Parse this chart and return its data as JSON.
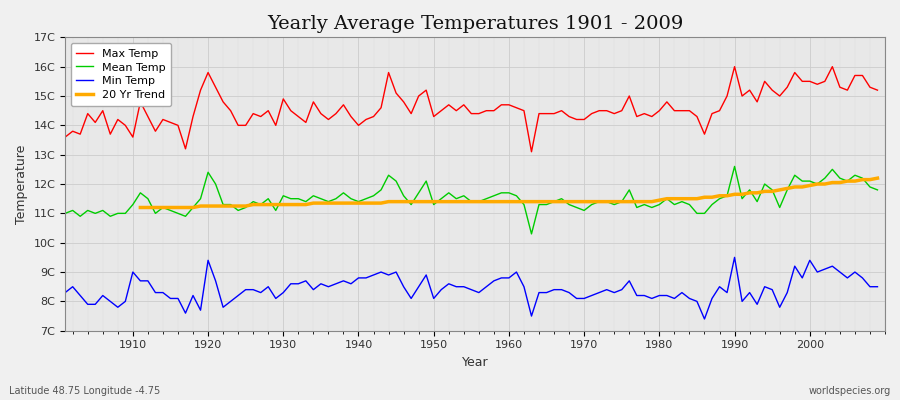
{
  "title": "Yearly Average Temperatures 1901 - 2009",
  "xlabel": "Year",
  "ylabel": "Temperature",
  "subtitle_left": "Latitude 48.75 Longitude -4.75",
  "subtitle_right": "worldspecies.org",
  "years": [
    1901,
    1902,
    1903,
    1904,
    1905,
    1906,
    1907,
    1908,
    1909,
    1910,
    1911,
    1912,
    1913,
    1914,
    1915,
    1916,
    1917,
    1918,
    1919,
    1920,
    1921,
    1922,
    1923,
    1924,
    1925,
    1926,
    1927,
    1928,
    1929,
    1930,
    1931,
    1932,
    1933,
    1934,
    1935,
    1936,
    1937,
    1938,
    1939,
    1940,
    1941,
    1942,
    1943,
    1944,
    1945,
    1946,
    1947,
    1948,
    1949,
    1950,
    1951,
    1952,
    1953,
    1954,
    1955,
    1956,
    1957,
    1958,
    1959,
    1960,
    1961,
    1962,
    1963,
    1964,
    1965,
    1966,
    1967,
    1968,
    1969,
    1970,
    1971,
    1972,
    1973,
    1974,
    1975,
    1976,
    1977,
    1978,
    1979,
    1980,
    1981,
    1982,
    1983,
    1984,
    1985,
    1986,
    1987,
    1988,
    1989,
    1990,
    1991,
    1992,
    1993,
    1994,
    1995,
    1996,
    1997,
    1998,
    1999,
    2000,
    2001,
    2002,
    2003,
    2004,
    2005,
    2006,
    2007,
    2008,
    2009
  ],
  "max_temp": [
    13.6,
    13.8,
    13.7,
    14.4,
    14.1,
    14.5,
    13.7,
    14.2,
    14.0,
    13.6,
    14.8,
    14.3,
    13.8,
    14.2,
    14.1,
    14.0,
    13.2,
    14.3,
    15.2,
    15.8,
    15.3,
    14.8,
    14.5,
    14.0,
    14.0,
    14.4,
    14.3,
    14.5,
    14.0,
    14.9,
    14.5,
    14.3,
    14.1,
    14.8,
    14.4,
    14.2,
    14.4,
    14.7,
    14.3,
    14.0,
    14.2,
    14.3,
    14.6,
    15.8,
    15.1,
    14.8,
    14.4,
    15.0,
    15.2,
    14.3,
    14.5,
    14.7,
    14.5,
    14.7,
    14.4,
    14.4,
    14.5,
    14.5,
    14.7,
    14.7,
    14.6,
    14.5,
    13.1,
    14.4,
    14.4,
    14.4,
    14.5,
    14.3,
    14.2,
    14.2,
    14.4,
    14.5,
    14.5,
    14.4,
    14.5,
    15.0,
    14.3,
    14.4,
    14.3,
    14.5,
    14.8,
    14.5,
    14.5,
    14.5,
    14.3,
    13.7,
    14.4,
    14.5,
    15.0,
    16.0,
    15.0,
    15.2,
    14.8,
    15.5,
    15.2,
    15.0,
    15.3,
    15.8,
    15.5,
    15.5,
    15.4,
    15.5,
    16.0,
    15.3,
    15.2,
    15.7,
    15.7,
    15.3,
    15.2
  ],
  "mean_temp": [
    11.0,
    11.1,
    10.9,
    11.1,
    11.0,
    11.1,
    10.9,
    11.0,
    11.0,
    11.3,
    11.7,
    11.5,
    11.0,
    11.2,
    11.1,
    11.0,
    10.9,
    11.2,
    11.5,
    12.4,
    12.0,
    11.3,
    11.3,
    11.1,
    11.2,
    11.4,
    11.3,
    11.5,
    11.1,
    11.6,
    11.5,
    11.5,
    11.4,
    11.6,
    11.5,
    11.4,
    11.5,
    11.7,
    11.5,
    11.4,
    11.5,
    11.6,
    11.8,
    12.3,
    12.1,
    11.6,
    11.3,
    11.7,
    12.1,
    11.3,
    11.5,
    11.7,
    11.5,
    11.6,
    11.4,
    11.4,
    11.5,
    11.6,
    11.7,
    11.7,
    11.6,
    11.3,
    10.3,
    11.3,
    11.3,
    11.4,
    11.5,
    11.3,
    11.2,
    11.1,
    11.3,
    11.4,
    11.4,
    11.3,
    11.4,
    11.8,
    11.2,
    11.3,
    11.2,
    11.3,
    11.5,
    11.3,
    11.4,
    11.3,
    11.0,
    11.0,
    11.3,
    11.5,
    11.6,
    12.6,
    11.5,
    11.8,
    11.4,
    12.0,
    11.8,
    11.2,
    11.8,
    12.3,
    12.1,
    12.1,
    12.0,
    12.2,
    12.5,
    12.2,
    12.1,
    12.3,
    12.2,
    11.9,
    11.8
  ],
  "min_temp": [
    8.3,
    8.5,
    8.2,
    7.9,
    7.9,
    8.2,
    8.0,
    7.8,
    8.0,
    9.0,
    8.7,
    8.7,
    8.3,
    8.3,
    8.1,
    8.1,
    7.6,
    8.2,
    7.7,
    9.4,
    8.7,
    7.8,
    8.0,
    8.2,
    8.4,
    8.4,
    8.3,
    8.5,
    8.1,
    8.3,
    8.6,
    8.6,
    8.7,
    8.4,
    8.6,
    8.5,
    8.6,
    8.7,
    8.6,
    8.8,
    8.8,
    8.9,
    9.0,
    8.9,
    9.0,
    8.5,
    8.1,
    8.5,
    8.9,
    8.1,
    8.4,
    8.6,
    8.5,
    8.5,
    8.4,
    8.3,
    8.5,
    8.7,
    8.8,
    8.8,
    9.0,
    8.5,
    7.5,
    8.3,
    8.3,
    8.4,
    8.4,
    8.3,
    8.1,
    8.1,
    8.2,
    8.3,
    8.4,
    8.3,
    8.4,
    8.7,
    8.2,
    8.2,
    8.1,
    8.2,
    8.2,
    8.1,
    8.3,
    8.1,
    8.0,
    7.4,
    8.1,
    8.5,
    8.3,
    9.5,
    8.0,
    8.3,
    7.9,
    8.5,
    8.4,
    7.8,
    8.3,
    9.2,
    8.8,
    9.4,
    9.0,
    9.1,
    9.2,
    9.0,
    8.8,
    9.0,
    8.8,
    8.5,
    8.5
  ],
  "trend_years": [
    1911,
    1912,
    1913,
    1914,
    1915,
    1916,
    1917,
    1918,
    1919,
    1920,
    1921,
    1922,
    1923,
    1924,
    1925,
    1926,
    1927,
    1928,
    1929,
    1930,
    1931,
    1932,
    1933,
    1934,
    1935,
    1936,
    1937,
    1938,
    1939,
    1940,
    1941,
    1942,
    1943,
    1944,
    1945,
    1946,
    1947,
    1948,
    1949,
    1950,
    1951,
    1952,
    1953,
    1954,
    1955,
    1956,
    1957,
    1958,
    1959,
    1960,
    1961,
    1962,
    1963,
    1964,
    1965,
    1966,
    1967,
    1968,
    1969,
    1970,
    1971,
    1972,
    1973,
    1974,
    1975,
    1976,
    1977,
    1978,
    1979,
    1980,
    1981,
    1982,
    1983,
    1984,
    1985,
    1986,
    1987,
    1988,
    1989,
    1990,
    1991,
    1992,
    1993,
    1994,
    1995,
    1996,
    1997,
    1998,
    1999,
    2000,
    2001,
    2002,
    2003,
    2004,
    2005,
    2006,
    2007,
    2008,
    2009
  ],
  "trend_vals": [
    11.2,
    11.2,
    11.2,
    11.2,
    11.2,
    11.2,
    11.2,
    11.2,
    11.25,
    11.25,
    11.25,
    11.25,
    11.25,
    11.25,
    11.25,
    11.3,
    11.3,
    11.3,
    11.3,
    11.3,
    11.3,
    11.3,
    11.3,
    11.35,
    11.35,
    11.35,
    11.35,
    11.35,
    11.35,
    11.35,
    11.35,
    11.35,
    11.35,
    11.4,
    11.4,
    11.4,
    11.4,
    11.4,
    11.4,
    11.4,
    11.4,
    11.4,
    11.4,
    11.4,
    11.4,
    11.4,
    11.4,
    11.4,
    11.4,
    11.4,
    11.4,
    11.4,
    11.4,
    11.4,
    11.4,
    11.4,
    11.4,
    11.4,
    11.4,
    11.4,
    11.4,
    11.4,
    11.4,
    11.4,
    11.4,
    11.4,
    11.4,
    11.4,
    11.4,
    11.45,
    11.5,
    11.5,
    11.5,
    11.5,
    11.5,
    11.55,
    11.55,
    11.6,
    11.6,
    11.65,
    11.65,
    11.7,
    11.7,
    11.75,
    11.75,
    11.8,
    11.85,
    11.9,
    11.9,
    11.95,
    12.0,
    12.0,
    12.05,
    12.05,
    12.1,
    12.1,
    12.15,
    12.15,
    12.2
  ],
  "max_color": "#ff0000",
  "mean_color": "#00cc00",
  "min_color": "#0000ff",
  "trend_color": "#ffaa00",
  "bg_color": "#e8e8e8",
  "fig_bg_color": "#f0f0f0",
  "ylim": [
    7,
    17
  ],
  "yticks": [
    7,
    8,
    9,
    10,
    11,
    12,
    13,
    14,
    15,
    16,
    17
  ],
  "ytick_labels": [
    "7C",
    "8C",
    "9C",
    "10C",
    "11C",
    "12C",
    "13C",
    "14C",
    "15C",
    "16C",
    "17C"
  ],
  "xlim": [
    1901,
    2010
  ],
  "linewidth": 1.0,
  "trend_linewidth": 2.5,
  "title_fontsize": 14,
  "legend_fontsize": 8,
  "axis_label_fontsize": 9,
  "tick_fontsize": 8,
  "subtitle_fontsize": 7
}
